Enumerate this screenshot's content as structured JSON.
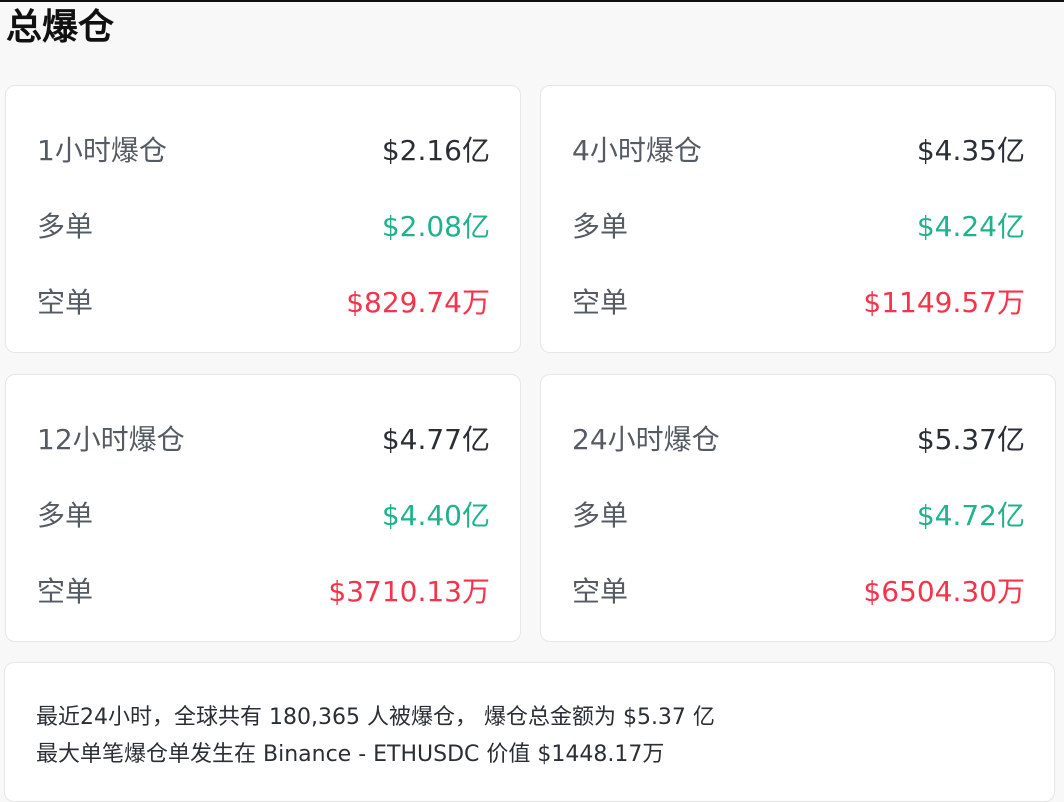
{
  "title": "总爆仓",
  "labels": {
    "long": "多单",
    "short": "空单"
  },
  "colors": {
    "long": "#20b28f",
    "short": "#f6334a"
  },
  "cards": [
    {
      "period": "1小时爆仓",
      "total": "$2.16亿",
      "long": "$2.08亿",
      "short": "$829.74万"
    },
    {
      "period": "4小时爆仓",
      "total": "$4.35亿",
      "long": "$4.24亿",
      "short": "$1149.57万"
    },
    {
      "period": "12小时爆仓",
      "total": "$4.77亿",
      "long": "$4.40亿",
      "short": "$3710.13万"
    },
    {
      "period": "24小时爆仓",
      "total": "$5.37亿",
      "long": "$4.72亿",
      "short": "$6504.30万"
    }
  ],
  "summary": {
    "line1": "最近24小时，全球共有 180,365 人被爆仓， 爆仓总金额为 $5.37 亿",
    "line2": "最大单笔爆仓单发生在 Binance - ETHUSDC 价值 $1448.17万"
  }
}
